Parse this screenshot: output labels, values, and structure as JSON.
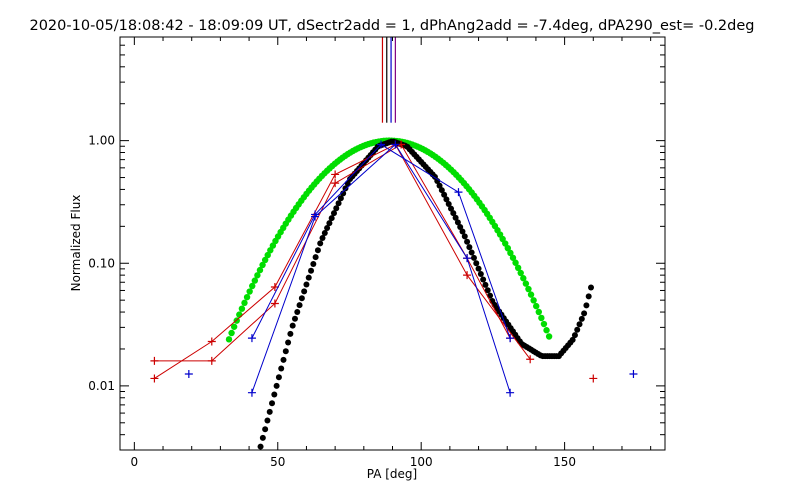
{
  "chart_data": {
    "type": "scatter",
    "title": "2020-10-05/18:08:42 - 18:09:09 UT, dSectr2add = 1, dPhAng2add = -7.4deg, dPA290_est= -0.2deg",
    "xlabel": "PA [deg]",
    "ylabel": "Normalized Flux",
    "xlim": [
      -5,
      185
    ],
    "ylim": [
      0.003,
      7.0
    ],
    "yscale": "log",
    "x_ticks": [
      0,
      50,
      100,
      150
    ],
    "x_tick_labels": [
      "0",
      "50",
      "100",
      "150"
    ],
    "y_ticks": [
      0.01,
      0.1,
      1.0
    ],
    "y_tick_labels": [
      "0.01",
      "0.10",
      "1.00"
    ],
    "vertical_markers": [
      {
        "x": 86.5,
        "color": "#cc0000"
      },
      {
        "x": 88.0,
        "color": "#000000"
      },
      {
        "x": 89.5,
        "color": "#0000cc"
      },
      {
        "x": 91.0,
        "color": "#800080"
      }
    ],
    "series": [
      {
        "name": "red (+) connected",
        "color": "#cc0000",
        "points": [
          [
            7,
            0.0115
          ],
          [
            27,
            0.023
          ],
          [
            49,
            0.064
          ],
          [
            70,
            0.53
          ],
          [
            91,
            0.93
          ],
          [
            116,
            0.08
          ],
          [
            138,
            0.0165
          ],
          [
            160,
            0.0115
          ],
          [
            131,
            0.0245
          ],
          [
            116,
            0.11
          ],
          [
            93,
            0.93
          ],
          [
            70,
            0.45
          ],
          [
            49,
            0.047
          ],
          [
            27,
            0.016
          ],
          [
            7,
            0.016
          ]
        ],
        "connected_indices": [
          0,
          1,
          2,
          3,
          4,
          5,
          6
        ],
        "connected_indices_2": [
          8,
          9,
          10,
          11,
          12,
          13,
          14
        ]
      },
      {
        "name": "blue (+) connected",
        "color": "#0000cc",
        "points": [
          [
            19,
            0.0125
          ],
          [
            41,
            0.0245
          ],
          [
            63,
            0.25
          ],
          [
            86,
            0.93
          ],
          [
            113,
            0.38
          ],
          [
            131,
            0.0245
          ],
          [
            174,
            0.0125
          ],
          [
            131,
            0.0088
          ],
          [
            116,
            0.11
          ],
          [
            91,
            0.93
          ],
          [
            63,
            0.24
          ],
          [
            41,
            0.0088
          ]
        ],
        "connected_indices": [
          1,
          2,
          3,
          4,
          5
        ],
        "connected_indices_2": [
          11,
          10,
          9,
          8,
          7
        ]
      },
      {
        "name": "green fit",
        "color": "#00dd00",
        "curve": "gaussian",
        "center": 89,
        "peak": 1.0,
        "sigma": 20.5,
        "x_range": [
          33,
          145
        ]
      },
      {
        "name": "black fit",
        "color": "#000000",
        "curve": "polynomial-log",
        "x_range": [
          44,
          160
        ],
        "points": [
          [
            44,
            0.0032
          ],
          [
            55,
            0.03
          ],
          [
            65,
            0.15
          ],
          [
            75,
            0.48
          ],
          [
            85,
            0.9
          ],
          [
            90,
            0.99
          ],
          [
            95,
            0.9
          ],
          [
            105,
            0.5
          ],
          [
            115,
            0.17
          ],
          [
            125,
            0.048
          ],
          [
            135,
            0.022
          ],
          [
            142,
            0.0175
          ],
          [
            148,
            0.0175
          ],
          [
            153,
            0.024
          ],
          [
            157,
            0.04
          ],
          [
            160,
            0.075
          ]
        ]
      }
    ]
  }
}
